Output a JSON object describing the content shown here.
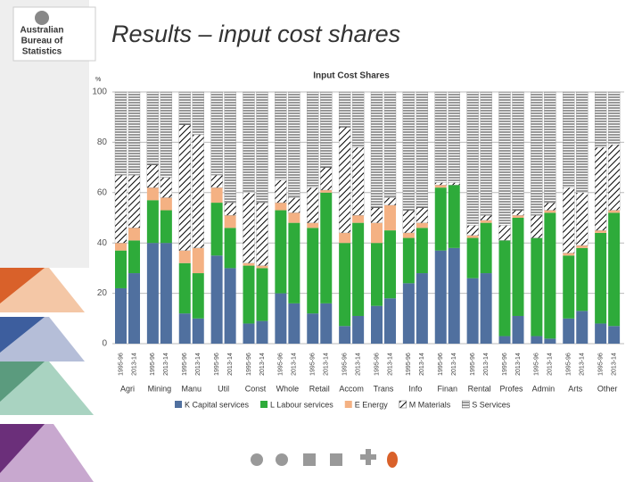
{
  "header": {
    "title": "Results – input cost shares",
    "logo": [
      "Australian",
      "Bureau of",
      "Statistics"
    ]
  },
  "chart_data": {
    "type": "bar",
    "stacked": true,
    "title": "Input Cost Shares",
    "ylabel": "%",
    "groups": [
      "Agri",
      "Mining",
      "Manu",
      "Util",
      "Const",
      "Whole",
      "Retail",
      "Accom",
      "Trans",
      "Info",
      "Finan",
      "Rental",
      "Profes",
      "Admin",
      "Arts",
      "Other"
    ],
    "categories": [
      "1995-96",
      "2013-14",
      "1995-96",
      "2013-14",
      "1995-96",
      "2013-14",
      "1995-96",
      "2013-14",
      "1995-96",
      "2013-14",
      "1995-96",
      "2013-14",
      "1995-96",
      "2013-14",
      "1995-96",
      "2013-14",
      "1995-96",
      "2013-14",
      "1995-96",
      "2013-14",
      "1995-96",
      "2013-14",
      "1995-96",
      "2013-14",
      "1995-96",
      "2013-14",
      "1995-96",
      "2013-14",
      "1995-96",
      "2013-14",
      "1995-96",
      "2013-14"
    ],
    "series": [
      {
        "name": "K  Capital services",
        "color": "#50709f",
        "values": [
          22,
          28,
          40,
          40,
          12,
          10,
          35,
          30,
          8,
          9,
          20,
          16,
          12,
          16,
          7,
          11,
          15,
          18,
          24,
          28,
          37,
          38,
          26,
          28,
          3,
          11,
          3,
          2,
          10,
          13,
          8,
          7
        ]
      },
      {
        "name": "L  Labour services",
        "color": "#2eab3a",
        "values": [
          15,
          13,
          17,
          13,
          20,
          18,
          21,
          16,
          23,
          21,
          33,
          32,
          34,
          44,
          33,
          37,
          25,
          27,
          18,
          18,
          25,
          25,
          16,
          20,
          38,
          39,
          39,
          50,
          25,
          25,
          36,
          45
        ]
      },
      {
        "name": "E  Energy",
        "color": "#f4b183",
        "values": [
          3,
          5,
          5,
          5,
          5,
          10,
          6,
          5,
          1,
          1,
          3,
          4,
          2,
          1,
          4,
          3,
          8,
          10,
          2,
          2,
          1,
          0,
          1,
          1,
          0,
          1,
          0,
          1,
          1,
          1,
          1,
          1
        ]
      },
      {
        "name": "M  Materials",
        "color": "#000000",
        "hatch": "diagonal",
        "values": [
          27,
          21,
          9,
          8,
          50,
          45,
          5,
          5,
          28,
          25,
          9,
          6,
          14,
          9,
          42,
          27,
          6,
          3,
          9,
          6,
          1,
          1,
          4,
          2,
          6,
          2,
          9,
          3,
          26,
          21,
          33,
          26
        ]
      },
      {
        "name": "S  Services",
        "color": "#000000",
        "hatch": "horizontal",
        "values": [
          33,
          33,
          29,
          34,
          13,
          17,
          33,
          44,
          40,
          44,
          35,
          42,
          38,
          30,
          14,
          22,
          46,
          42,
          47,
          46,
          36,
          36,
          53,
          49,
          53,
          47,
          49,
          44,
          38,
          40,
          22,
          21
        ]
      }
    ],
    "ylim": [
      0,
      100
    ],
    "yticks": [
      0,
      20,
      40,
      60,
      80,
      100
    ],
    "grid": true
  }
}
